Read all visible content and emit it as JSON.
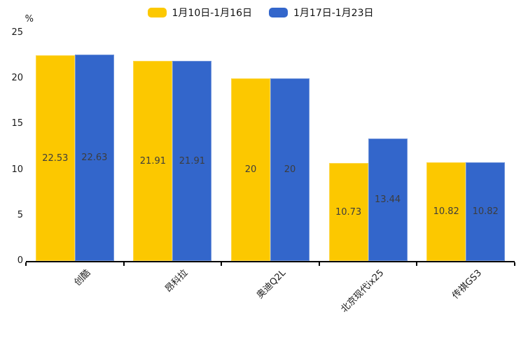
{
  "chart_data": {
    "type": "bar",
    "title": "",
    "unit_label": "%",
    "categories": [
      "创酷",
      "昂科拉",
      "奥迪Q2L",
      "北京现代ix25",
      "传祺GS3"
    ],
    "series": [
      {
        "name": "1月10日-1月16日",
        "color": "#FCC800",
        "values": [
          22.53,
          21.91,
          20,
          10.73,
          10.82
        ]
      },
      {
        "name": "1月17日-1月23日",
        "color": "#3366CB",
        "values": [
          22.63,
          21.91,
          20,
          13.44,
          10.82
        ]
      }
    ],
    "ylim": [
      0,
      25
    ],
    "yticks": [
      0,
      5,
      10,
      15,
      20,
      25
    ],
    "grid": false,
    "legend_position": "top",
    "value_labels_shown": true
  },
  "colors": {
    "background": "#ffffff",
    "axis": "#000000",
    "tick_text": "#1a1a1a",
    "value_text": "#3d3d3d"
  }
}
